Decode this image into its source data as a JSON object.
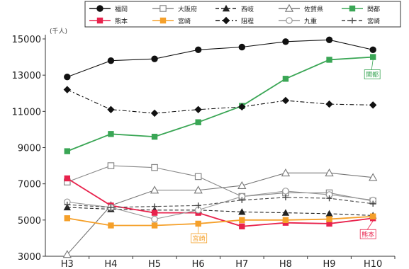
{
  "chart_data": {
    "type": "line",
    "title": "",
    "xlabel": "",
    "ylabel": "",
    "unit_label": "(千人)",
    "categories": [
      "H3",
      "H4",
      "H5",
      "H6",
      "H7",
      "H8",
      "H9",
      "H10"
    ],
    "ylim": [
      3000,
      15000
    ],
    "yticks": [
      "3000",
      "5000",
      "7000",
      "9000",
      "11000",
      "13000",
      "15000"
    ],
    "grid": false,
    "legend_position": "top",
    "series": [
      {
        "name": "福岡",
        "color": "#111111",
        "marker": "filled-circle",
        "dash": "solid",
        "values": [
          12900,
          13800,
          13900,
          14400,
          14550,
          14850,
          14950,
          14400
        ]
      },
      {
        "name": "大阪府",
        "color": "#888888",
        "marker": "open-square",
        "dash": "solid",
        "values": [
          7100,
          8000,
          7900,
          7400,
          6300,
          6500,
          6500,
          6050
        ]
      },
      {
        "name": "西岐",
        "color": "#222222",
        "marker": "filled-triangle",
        "dash": "dashed",
        "values": [
          5700,
          5600,
          5550,
          5550,
          5450,
          5400,
          5350,
          5250
        ]
      },
      {
        "name": "佐賀県",
        "color": "#777777",
        "marker": "open-triangle",
        "dash": "solid",
        "values": [
          3100,
          5800,
          6650,
          6650,
          6900,
          7600,
          7600,
          7350
        ]
      },
      {
        "name": "関都",
        "color": "#3aa655",
        "marker": "filled-square",
        "dash": "solid",
        "values": [
          8800,
          9750,
          9600,
          10400,
          11300,
          12800,
          13850,
          14000
        ]
      },
      {
        "name": "熊本",
        "color": "#e8224c",
        "marker": "filled-square",
        "dash": "solid",
        "values": [
          7300,
          5800,
          5400,
          5400,
          4650,
          4850,
          4800,
          5100
        ]
      },
      {
        "name": "宮崎",
        "color": "#f5a02a",
        "marker": "filled-square",
        "dash": "solid",
        "values": [
          5100,
          4700,
          4700,
          4800,
          5000,
          5000,
          5050,
          5200
        ]
      },
      {
        "name": "阻程",
        "color": "#111111",
        "marker": "filled-diamond",
        "dash": "dashdot",
        "values": [
          12200,
          11100,
          10900,
          11100,
          11250,
          11600,
          11400,
          11350
        ]
      },
      {
        "name": "九重",
        "color": "#999999",
        "marker": "open-circle",
        "dash": "solid",
        "values": [
          6000,
          5700,
          5050,
          5550,
          6300,
          6600,
          6400,
          6100
        ]
      },
      {
        "name": "宮崎",
        "color": "#444444",
        "marker": "cross",
        "dash": "dashed",
        "values": [
          5850,
          5700,
          5750,
          5800,
          6100,
          6250,
          6200,
          5900
        ]
      }
    ],
    "annotations": [
      {
        "text": "関都",
        "series": 4,
        "category": "H10",
        "color": "#3aa655"
      },
      {
        "text": "宮崎",
        "series": 6,
        "category": "H6",
        "color": "#f5a02a"
      },
      {
        "text": "熊本",
        "series": 5,
        "category": "H10",
        "color": "#e8224c"
      }
    ]
  }
}
